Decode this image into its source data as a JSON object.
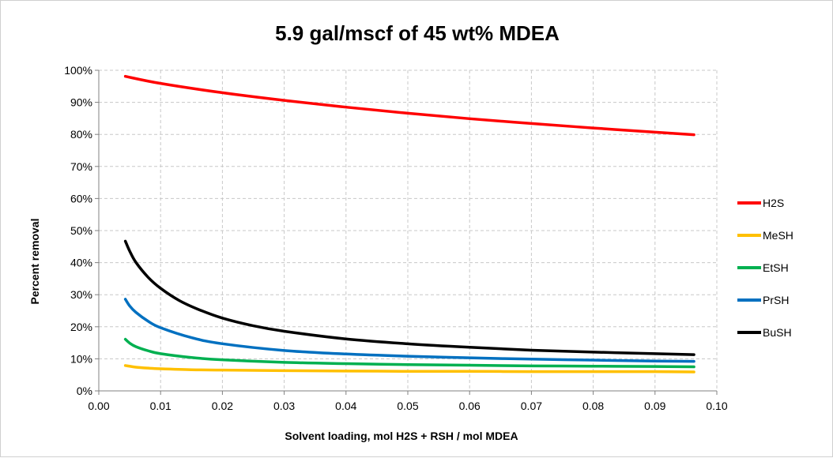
{
  "chart_data": {
    "type": "line",
    "title": "5.9 gal/mscf of 45 wt% MDEA",
    "xlabel": "Solvent loading, mol H2S + RSH / mol MDEA",
    "ylabel": "Percent removal",
    "xlim": [
      0.0,
      0.1
    ],
    "ylim": [
      0,
      100
    ],
    "x_ticks": [
      "0.00",
      "0.01",
      "0.02",
      "0.03",
      "0.04",
      "0.05",
      "0.06",
      "0.07",
      "0.08",
      "0.09",
      "0.10"
    ],
    "y_ticks": [
      "0%",
      "10%",
      "20%",
      "30%",
      "40%",
      "50%",
      "60%",
      "70%",
      "80%",
      "90%",
      "100%"
    ],
    "grid": true,
    "legend_position": "right",
    "series": [
      {
        "name": "H2S",
        "color": "#ff0000",
        "points": [
          [
            0.0043,
            98.1
          ],
          [
            0.01,
            95.9
          ],
          [
            0.02,
            93.0
          ],
          [
            0.03,
            90.6
          ],
          [
            0.04,
            88.5
          ],
          [
            0.05,
            86.6
          ],
          [
            0.06,
            84.9
          ],
          [
            0.07,
            83.4
          ],
          [
            0.08,
            82.0
          ],
          [
            0.09,
            80.7
          ],
          [
            0.0963,
            79.9
          ]
        ]
      },
      {
        "name": "MeSH",
        "color": "#ffc000",
        "points": [
          [
            0.0043,
            7.9
          ],
          [
            0.006,
            7.4
          ],
          [
            0.008,
            7.1
          ],
          [
            0.01,
            6.9
          ],
          [
            0.015,
            6.6
          ],
          [
            0.02,
            6.5
          ],
          [
            0.03,
            6.3
          ],
          [
            0.04,
            6.2
          ],
          [
            0.05,
            6.1
          ],
          [
            0.06,
            6.1
          ],
          [
            0.07,
            6.0
          ],
          [
            0.08,
            6.0
          ],
          [
            0.09,
            6.0
          ],
          [
            0.0963,
            5.9
          ]
        ]
      },
      {
        "name": "EtSH",
        "color": "#00b050",
        "points": [
          [
            0.0043,
            16.1
          ],
          [
            0.005,
            14.9
          ],
          [
            0.006,
            13.8
          ],
          [
            0.008,
            12.5
          ],
          [
            0.01,
            11.6
          ],
          [
            0.015,
            10.4
          ],
          [
            0.02,
            9.7
          ],
          [
            0.03,
            8.9
          ],
          [
            0.04,
            8.5
          ],
          [
            0.05,
            8.2
          ],
          [
            0.06,
            8.0
          ],
          [
            0.07,
            7.8
          ],
          [
            0.08,
            7.7
          ],
          [
            0.09,
            7.6
          ],
          [
            0.0963,
            7.5
          ]
        ]
      },
      {
        "name": "PrSH",
        "color": "#0070c0",
        "points": [
          [
            0.0043,
            28.6
          ],
          [
            0.005,
            26.5
          ],
          [
            0.006,
            24.5
          ],
          [
            0.008,
            21.7
          ],
          [
            0.01,
            19.7
          ],
          [
            0.015,
            16.6
          ],
          [
            0.02,
            14.7
          ],
          [
            0.03,
            12.6
          ],
          [
            0.04,
            11.5
          ],
          [
            0.05,
            10.8
          ],
          [
            0.06,
            10.3
          ],
          [
            0.07,
            9.9
          ],
          [
            0.08,
            9.6
          ],
          [
            0.09,
            9.3
          ],
          [
            0.0963,
            9.2
          ]
        ]
      },
      {
        "name": "BuSH",
        "color": "#000000",
        "points": [
          [
            0.0043,
            46.7
          ],
          [
            0.005,
            43.6
          ],
          [
            0.006,
            40.1
          ],
          [
            0.008,
            35.4
          ],
          [
            0.01,
            32.0
          ],
          [
            0.013,
            28.2
          ],
          [
            0.016,
            25.5
          ],
          [
            0.02,
            22.7
          ],
          [
            0.025,
            20.3
          ],
          [
            0.03,
            18.6
          ],
          [
            0.04,
            16.2
          ],
          [
            0.05,
            14.7
          ],
          [
            0.06,
            13.6
          ],
          [
            0.07,
            12.7
          ],
          [
            0.08,
            12.1
          ],
          [
            0.09,
            11.6
          ],
          [
            0.0963,
            11.3
          ]
        ]
      }
    ]
  }
}
